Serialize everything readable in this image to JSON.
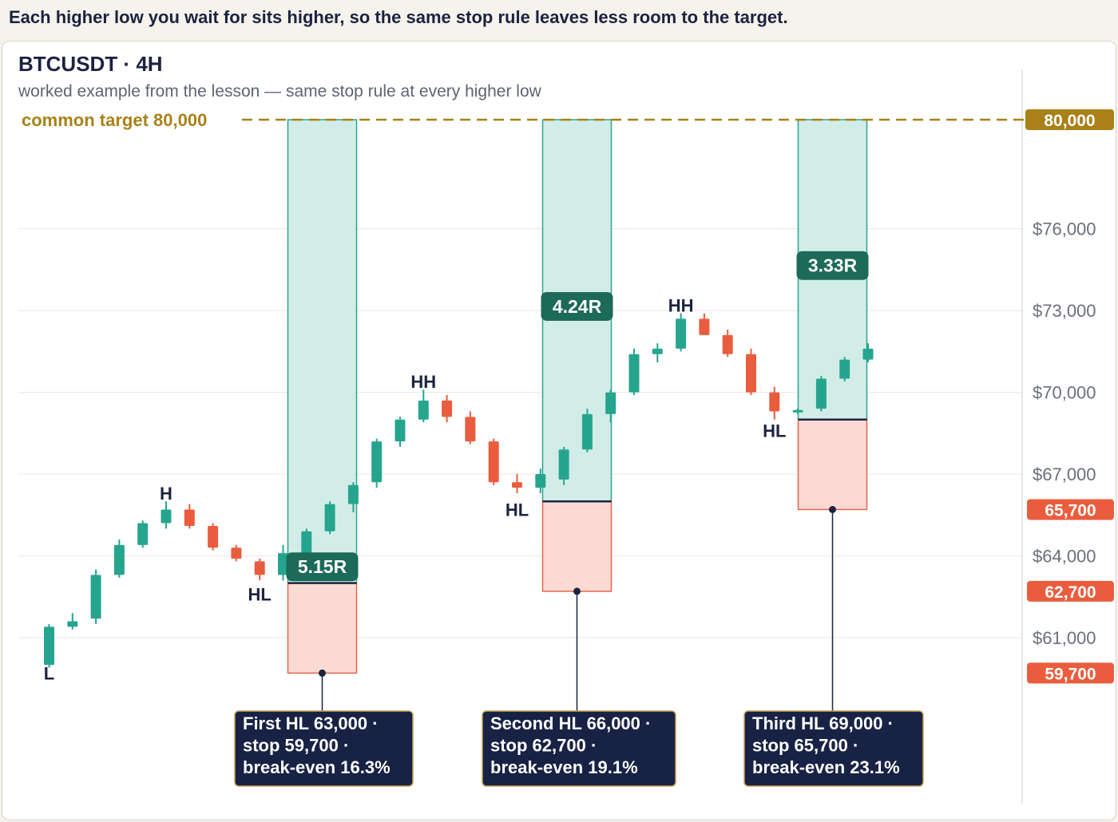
{
  "caption": "Each higher low you wait for sits higher, so the same stop rule leaves less room to the target.",
  "chart_data": {
    "type": "candlestick",
    "title": "BTCUSDT · 4H",
    "subtitle": "worked example from the lesson — same stop rule at every higher low",
    "ylim": [
      59000,
      80000
    ],
    "y_ticks": [
      {
        "value": 76000,
        "label": "$76,000"
      },
      {
        "value": 73000,
        "label": "$73,000"
      },
      {
        "value": 70000,
        "label": "$70,000"
      },
      {
        "value": 67000,
        "label": "$67,000"
      },
      {
        "value": 64000,
        "label": "$64,000"
      },
      {
        "value": 61000,
        "label": "$61,000"
      }
    ],
    "grid": true,
    "target": {
      "value": 80000,
      "label": "common target 80,000",
      "tag": "80,000"
    },
    "candles": [
      {
        "o": 60000,
        "h": 61500,
        "l": 59900,
        "c": 61400
      },
      {
        "o": 61400,
        "h": 61900,
        "l": 61300,
        "c": 61600
      },
      {
        "o": 61700,
        "h": 63500,
        "l": 61500,
        "c": 63300
      },
      {
        "o": 63300,
        "h": 64600,
        "l": 63200,
        "c": 64400
      },
      {
        "o": 64400,
        "h": 65300,
        "l": 64300,
        "c": 65200
      },
      {
        "o": 65200,
        "h": 66000,
        "l": 65000,
        "c": 65700
      },
      {
        "o": 65700,
        "h": 65900,
        "l": 65000,
        "c": 65100
      },
      {
        "o": 65100,
        "h": 65200,
        "l": 64200,
        "c": 64300
      },
      {
        "o": 64300,
        "h": 64400,
        "l": 63800,
        "c": 63900
      },
      {
        "o": 63800,
        "h": 63900,
        "l": 63100,
        "c": 63300
      },
      {
        "o": 63300,
        "h": 64400,
        "l": 63100,
        "c": 64100
      },
      {
        "o": 64100,
        "h": 65000,
        "l": 63900,
        "c": 64900
      },
      {
        "o": 64900,
        "h": 66000,
        "l": 64800,
        "c": 65900
      },
      {
        "o": 65900,
        "h": 66700,
        "l": 65600,
        "c": 66600
      },
      {
        "o": 66700,
        "h": 68300,
        "l": 66500,
        "c": 68200
      },
      {
        "o": 68200,
        "h": 69100,
        "l": 68000,
        "c": 69000
      },
      {
        "o": 69000,
        "h": 70100,
        "l": 68900,
        "c": 69700
      },
      {
        "o": 69700,
        "h": 69900,
        "l": 68900,
        "c": 69100
      },
      {
        "o": 69100,
        "h": 69300,
        "l": 68100,
        "c": 68200
      },
      {
        "o": 68200,
        "h": 68300,
        "l": 66600,
        "c": 66700
      },
      {
        "o": 66700,
        "h": 67000,
        "l": 66300,
        "c": 66500
      },
      {
        "o": 66500,
        "h": 67200,
        "l": 66300,
        "c": 67000
      },
      {
        "o": 66800,
        "h": 68000,
        "l": 66600,
        "c": 67900
      },
      {
        "o": 67900,
        "h": 69400,
        "l": 67800,
        "c": 69200
      },
      {
        "o": 69200,
        "h": 70100,
        "l": 68900,
        "c": 70000
      },
      {
        "o": 70000,
        "h": 71600,
        "l": 69900,
        "c": 71400
      },
      {
        "o": 71400,
        "h": 71800,
        "l": 71100,
        "c": 71600
      },
      {
        "o": 71600,
        "h": 72900,
        "l": 71500,
        "c": 72700
      },
      {
        "o": 72700,
        "h": 72900,
        "l": 72100,
        "c": 72100
      },
      {
        "o": 72100,
        "h": 72300,
        "l": 71300,
        "c": 71400
      },
      {
        "o": 71400,
        "h": 71600,
        "l": 69900,
        "c": 70000
      },
      {
        "o": 70000,
        "h": 70200,
        "l": 69000,
        "c": 69300
      },
      {
        "o": 69300,
        "h": 69400,
        "l": 69200,
        "c": 69350
      },
      {
        "o": 69400,
        "h": 70600,
        "l": 69300,
        "c": 70500
      },
      {
        "o": 70500,
        "h": 71300,
        "l": 70400,
        "c": 71200
      },
      {
        "o": 71200,
        "h": 71800,
        "l": 71100,
        "c": 71600
      }
    ],
    "swing_labels": [
      {
        "text": "L",
        "candle": 0,
        "value": 59700
      },
      {
        "text": "H",
        "candle": 5,
        "value": 66300
      },
      {
        "text": "HL",
        "candle": 9,
        "value": 62600
      },
      {
        "text": "HH",
        "candle": 16,
        "value": 70400
      },
      {
        "text": "HL",
        "candle": 20,
        "value": 65700
      },
      {
        "text": "HH",
        "candle": 27,
        "value": 73200
      },
      {
        "text": "HL",
        "candle": 31,
        "value": 68600
      }
    ],
    "setups": [
      {
        "entry": 63000,
        "stop": 59700,
        "target": 80000,
        "r_label": "5.15R",
        "r_value": 63600,
        "stop_tag": "59,700",
        "note": [
          "First HL 63,000 ·",
          "stop 59,700 ·",
          "break-even 16.3%"
        ]
      },
      {
        "entry": 66000,
        "stop": 62700,
        "target": 80000,
        "r_label": "4.24R",
        "r_value": 73150,
        "stop_tag": "62,700",
        "note": [
          "Second HL 66,000 ·",
          "stop 62,700 ·",
          "break-even 19.1%"
        ]
      },
      {
        "entry": 69000,
        "stop": 65700,
        "target": 80000,
        "r_label": "3.33R",
        "r_value": 74650,
        "stop_tag": "65,700",
        "note": [
          "Third HL 69,000 ·",
          "stop 65,700 ·",
          "break-even 23.1%"
        ]
      }
    ],
    "colors": {
      "up": "#26a58e",
      "down": "#e95d3e",
      "target": "#a98118",
      "reward_fill": "#d2ede7",
      "reward_stroke": "#2fa38e",
      "risk_fill": "#fadad3",
      "risk_stroke": "#e6654a",
      "r_badge": "#1c6a58",
      "note_bg": "#182245",
      "note_border": "#c9a04e",
      "ink": "#1b2340",
      "muted": "#5e6474",
      "tick": "#6b6f7a",
      "grid": "#e7e7e7"
    }
  }
}
